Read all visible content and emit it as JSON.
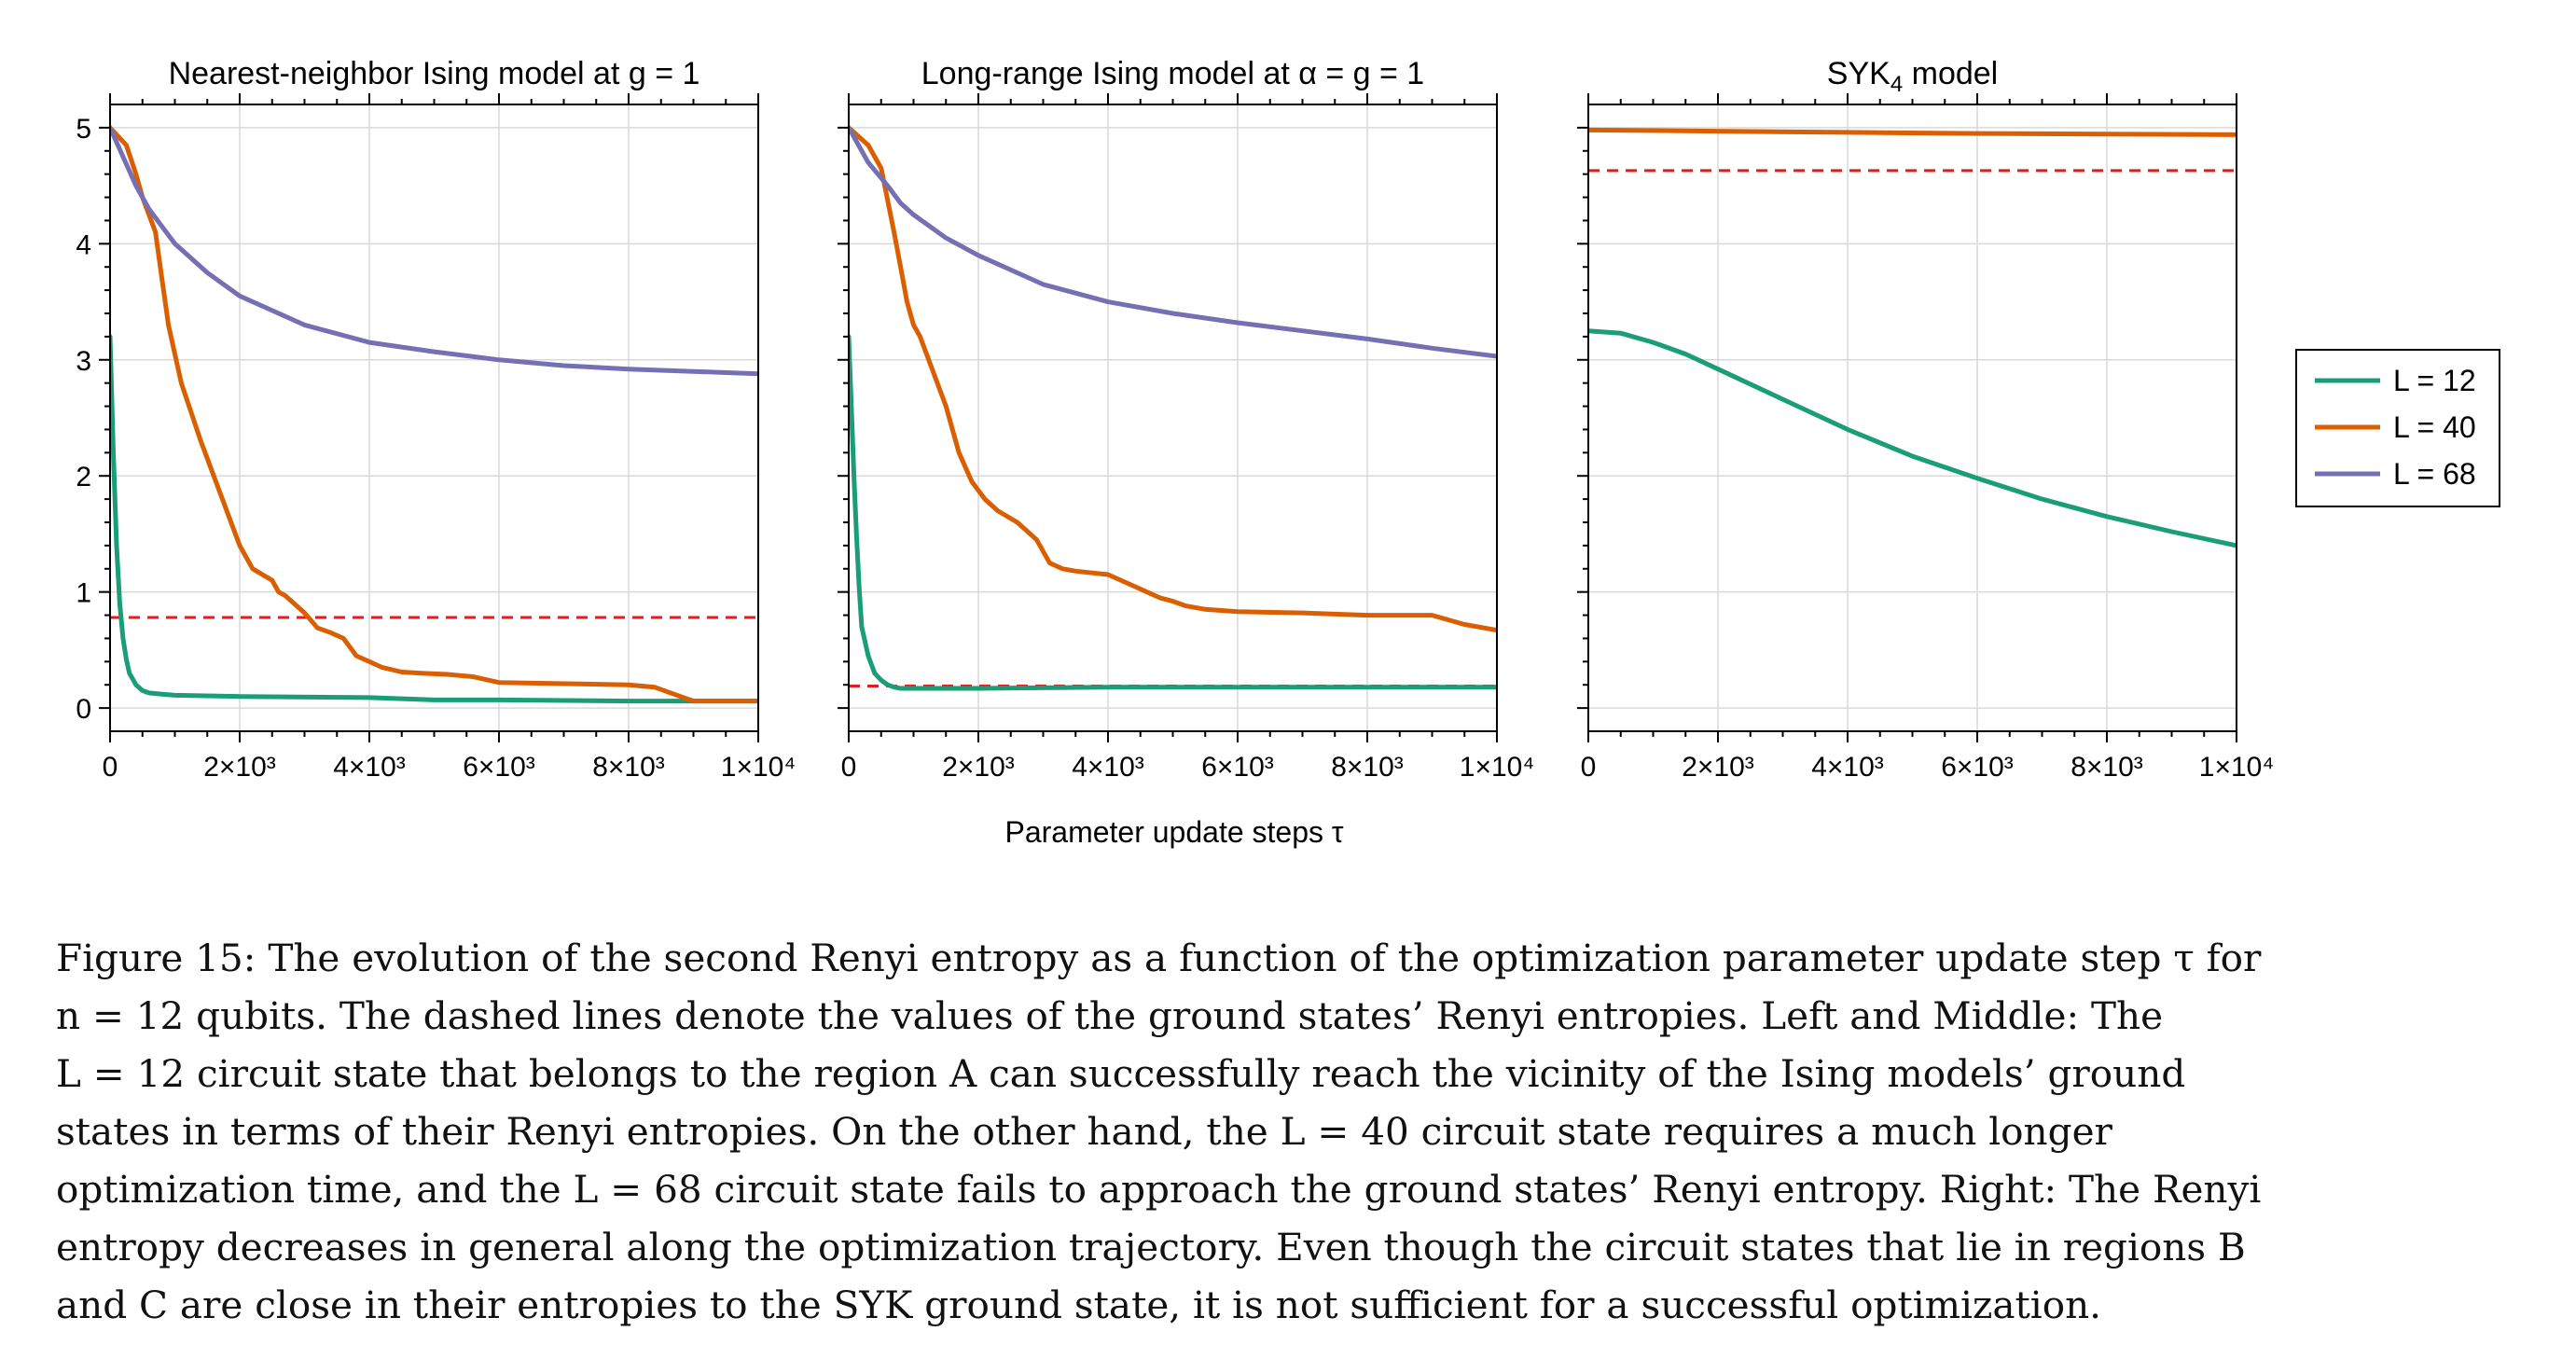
{
  "colors": {
    "L12": "#1b9e77",
    "L40": "#d95f02",
    "L68": "#7570b3",
    "ground_state": "#e41a1c",
    "grid": "#d9d9d9",
    "axes": "#000000"
  },
  "figure": {
    "xlabel": "Parameter update steps τ",
    "legend": {
      "placement": "right",
      "entries": [
        "L = 12",
        "L = 40",
        "L = 68"
      ]
    }
  },
  "chart_data": [
    {
      "type": "line",
      "title": "Nearest-neighbor Ising model at g = 1",
      "xlim": [
        0,
        10000
      ],
      "ylim": [
        -0.2,
        5.2
      ],
      "xticks": [
        0,
        2000,
        4000,
        6000,
        8000,
        10000
      ],
      "xtick_labels": [
        "0",
        "2×10³",
        "4×10³",
        "6×10³",
        "8×10³",
        "1×10⁴"
      ],
      "yticks": [
        0,
        1,
        2,
        3,
        4,
        5
      ],
      "ytick_labels": [
        "0",
        "1",
        "2",
        "3",
        "4",
        "5"
      ],
      "grid": true,
      "ground_state_dashed": 0.78,
      "series": [
        {
          "name": "L = 12",
          "x": [
            0,
            50,
            100,
            150,
            200,
            250,
            300,
            400,
            500,
            600,
            800,
            1000,
            2000,
            4000,
            5000,
            6000,
            8000,
            10000
          ],
          "y": [
            3.2,
            2.2,
            1.4,
            0.9,
            0.6,
            0.42,
            0.3,
            0.2,
            0.15,
            0.13,
            0.12,
            0.11,
            0.1,
            0.09,
            0.07,
            0.07,
            0.06,
            0.06
          ]
        },
        {
          "name": "L = 40",
          "x": [
            0,
            250,
            400,
            500,
            700,
            800,
            900,
            1100,
            1400,
            1600,
            1800,
            2000,
            2200,
            2500,
            2600,
            2700,
            2800,
            3000,
            3200,
            3400,
            3600,
            3800,
            4200,
            4500,
            4800,
            5200,
            5600,
            6000,
            8000,
            8400,
            8800,
            9000,
            10000
          ],
          "y": [
            5.0,
            4.85,
            4.6,
            4.4,
            4.1,
            3.7,
            3.3,
            2.8,
            2.3,
            2.0,
            1.7,
            1.4,
            1.2,
            1.1,
            1.0,
            0.97,
            0.92,
            0.82,
            0.69,
            0.65,
            0.6,
            0.45,
            0.35,
            0.31,
            0.3,
            0.29,
            0.27,
            0.22,
            0.2,
            0.18,
            0.1,
            0.06,
            0.06
          ]
        },
        {
          "name": "L = 68",
          "x": [
            0,
            200,
            400,
            600,
            800,
            1000,
            1500,
            2000,
            3000,
            4000,
            5000,
            6000,
            7000,
            8000,
            9000,
            10000
          ],
          "y": [
            5.0,
            4.75,
            4.5,
            4.3,
            4.15,
            4.0,
            3.75,
            3.55,
            3.3,
            3.15,
            3.07,
            3.0,
            2.95,
            2.92,
            2.9,
            2.88
          ]
        }
      ]
    },
    {
      "type": "line",
      "title": "Long-range Ising model at α = g = 1",
      "xlim": [
        0,
        10000
      ],
      "ylim": [
        -0.2,
        5.2
      ],
      "xticks": [
        0,
        2000,
        4000,
        6000,
        8000,
        10000
      ],
      "xtick_labels": [
        "0",
        "2×10³",
        "4×10³",
        "6×10³",
        "8×10³",
        "1×10⁴"
      ],
      "yticks": [
        0,
        1,
        2,
        3,
        4,
        5
      ],
      "ytick_labels": [
        "",
        "",
        "",
        "",
        "",
        ""
      ],
      "grid": true,
      "ground_state_dashed": 0.19,
      "series": [
        {
          "name": "L = 12",
          "x": [
            0,
            40,
            80,
            120,
            160,
            200,
            300,
            400,
            500,
            600,
            700,
            800,
            1000,
            2000,
            4000,
            6000,
            8000,
            10000
          ],
          "y": [
            3.2,
            2.6,
            2.0,
            1.5,
            1.05,
            0.7,
            0.45,
            0.3,
            0.24,
            0.2,
            0.18,
            0.17,
            0.17,
            0.17,
            0.18,
            0.18,
            0.18,
            0.18
          ]
        },
        {
          "name": "L = 40",
          "x": [
            0,
            300,
            500,
            700,
            800,
            900,
            1000,
            1100,
            1300,
            1500,
            1600,
            1700,
            1900,
            2100,
            2300,
            2600,
            2900,
            3100,
            3300,
            3500,
            4000,
            4400,
            4800,
            5000,
            5200,
            5500,
            6000,
            7000,
            8000,
            9000,
            9500,
            10000
          ],
          "y": [
            5.0,
            4.85,
            4.65,
            4.1,
            3.8,
            3.5,
            3.3,
            3.2,
            2.9,
            2.6,
            2.4,
            2.2,
            1.95,
            1.8,
            1.7,
            1.6,
            1.45,
            1.25,
            1.2,
            1.18,
            1.15,
            1.05,
            0.95,
            0.92,
            0.88,
            0.85,
            0.83,
            0.82,
            0.8,
            0.8,
            0.72,
            0.67
          ]
        },
        {
          "name": "L = 68",
          "x": [
            0,
            300,
            600,
            800,
            1000,
            1500,
            2000,
            3000,
            4000,
            5000,
            6000,
            7000,
            8000,
            9000,
            10000
          ],
          "y": [
            5.0,
            4.7,
            4.5,
            4.35,
            4.25,
            4.05,
            3.9,
            3.65,
            3.5,
            3.4,
            3.32,
            3.25,
            3.18,
            3.1,
            3.03
          ]
        }
      ]
    },
    {
      "type": "line",
      "title": "SYK",
      "title_subscript": "4",
      "title_suffix": " model",
      "xlim": [
        0,
        10000
      ],
      "ylim": [
        -0.2,
        5.2
      ],
      "xticks": [
        0,
        2000,
        4000,
        6000,
        8000,
        10000
      ],
      "xtick_labels": [
        "0",
        "2×10³",
        "4×10³",
        "6×10³",
        "8×10³",
        "1×10⁴"
      ],
      "yticks": [
        0,
        1,
        2,
        3,
        4,
        5
      ],
      "ytick_labels": [
        "",
        "",
        "",
        "",
        "",
        ""
      ],
      "grid": true,
      "ground_state_dashed": 4.63,
      "series": [
        {
          "name": "L = 12",
          "x": [
            0,
            500,
            1000,
            1500,
            2000,
            3000,
            4000,
            5000,
            6000,
            7000,
            8000,
            9000,
            10000
          ],
          "y": [
            3.25,
            3.23,
            3.15,
            3.05,
            2.92,
            2.66,
            2.4,
            2.17,
            1.98,
            1.8,
            1.65,
            1.52,
            1.4
          ]
        },
        {
          "name": "L = 40",
          "x": [
            0,
            2000,
            4000,
            6000,
            8000,
            10000
          ],
          "y": [
            4.98,
            4.97,
            4.96,
            4.95,
            4.945,
            4.94
          ]
        }
      ]
    }
  ],
  "caption": {
    "line1": "Figure 15: The evolution of the second Renyi entropy as a function of the optimization parameter update step τ for",
    "line2": "n = 12 qubits. The dashed lines denote the values of the ground states’ Renyi entropies. Left and Middle: The",
    "line3": "L = 12 circuit state that belongs to the region A can successfully reach the vicinity of the Ising models’ ground",
    "line4": "states in terms of their Renyi entropies. On the other hand, the L = 40 circuit state requires a much longer",
    "line5": "optimization time, and the L = 68 circuit state fails to approach the ground states’ Renyi entropy. Right: The Renyi",
    "line6": "entropy decreases in general along the optimization trajectory. Even though the circuit states that lie in regions B",
    "line7": "and C are close in their entropies to the SYK ground state, it is not sufficient for a successful optimization."
  }
}
